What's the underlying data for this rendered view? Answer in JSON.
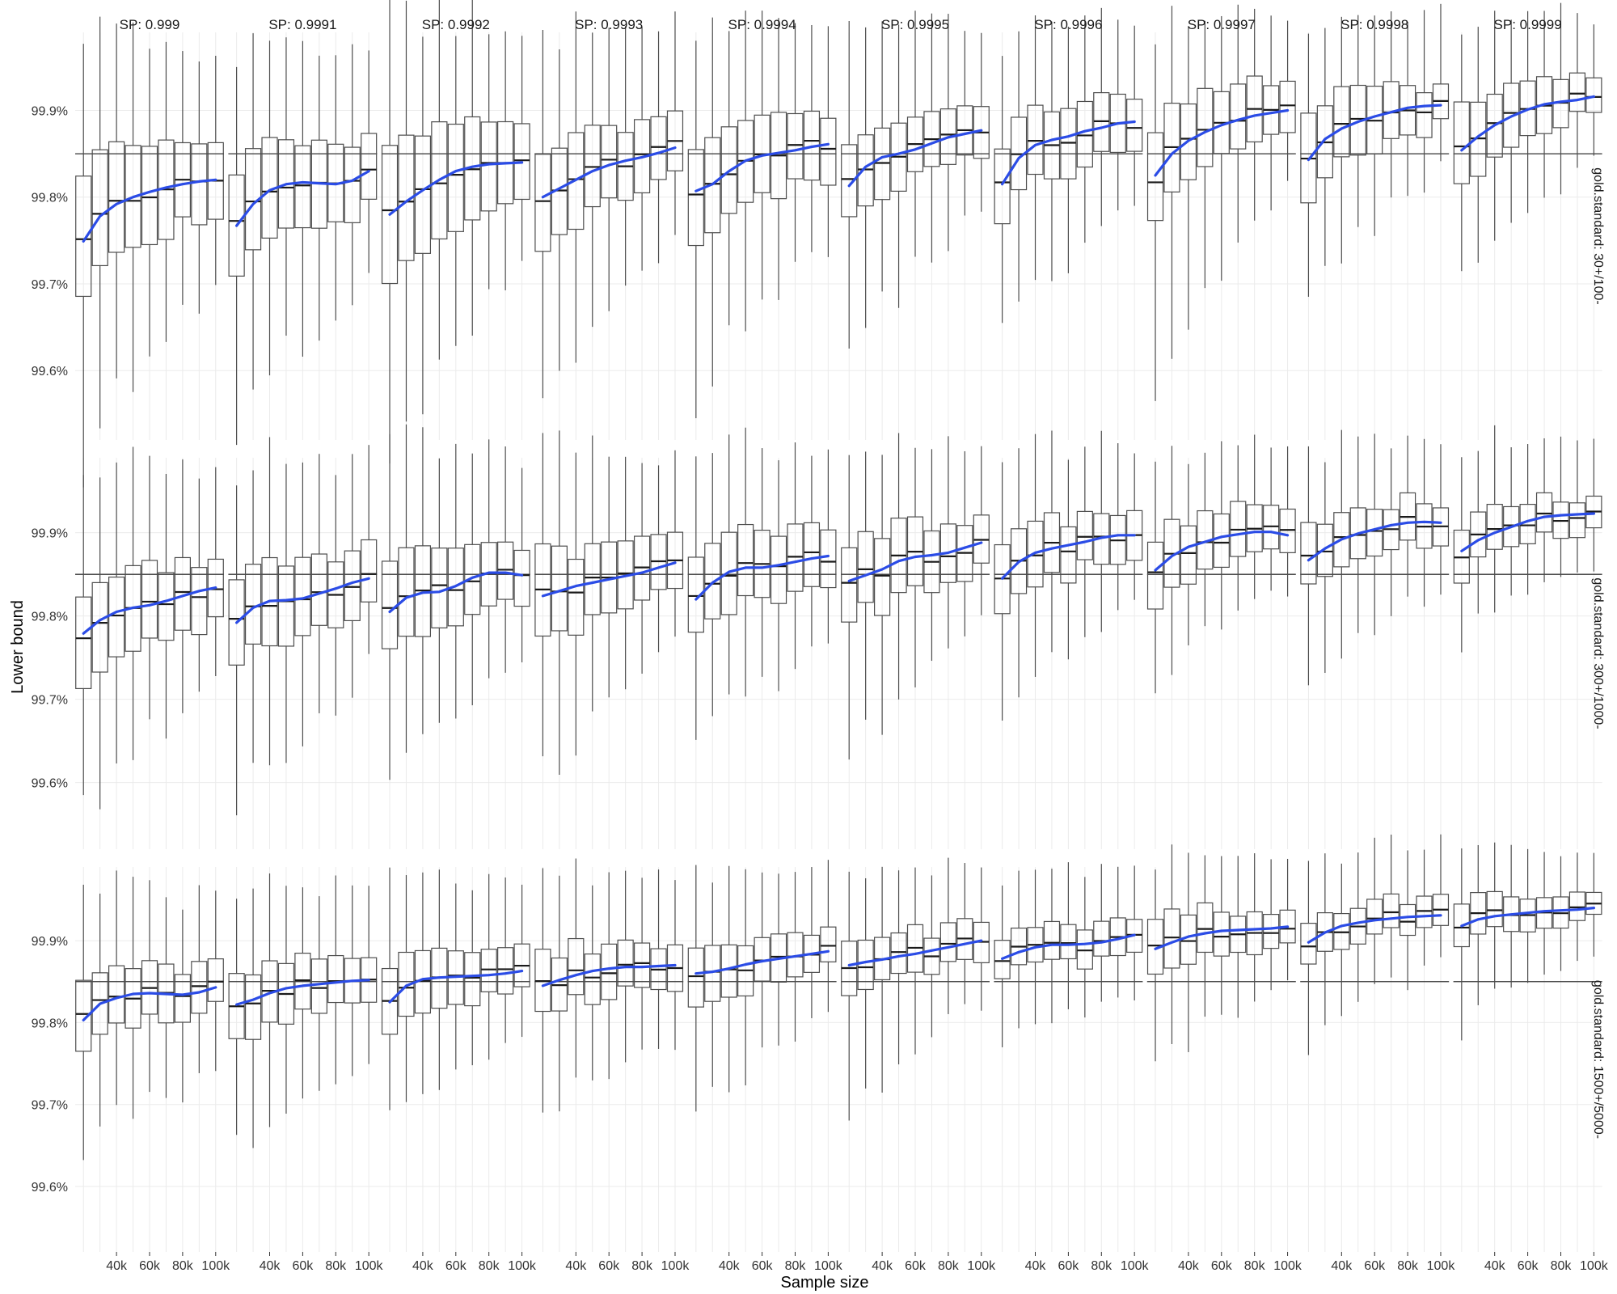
{
  "colors": {
    "box_stroke": "#4d4d4d",
    "median": "#1a1a1a",
    "whisker": "#4d4d4d",
    "trend": "#2b4ce6",
    "reference": "#333333",
    "grid": "#ebebeb",
    "background": "#ffffff"
  },
  "chart_data": {
    "type": "boxplot-facet",
    "xlabel": "Sample size",
    "ylabel": "Lower bound",
    "x_tick_labels": [
      "40k",
      "60k",
      "80k",
      "100k"
    ],
    "x_tick_values": [
      40000,
      60000,
      80000,
      100000
    ],
    "x_values": [
      20000,
      30000,
      40000,
      50000,
      60000,
      70000,
      80000,
      90000,
      100000
    ],
    "x_range": [
      15000,
      105000
    ],
    "y_tick_labels": [
      "99.6%",
      "99.7%",
      "99.8%",
      "99.9%"
    ],
    "y_tick_values": [
      99.6,
      99.7,
      99.8,
      99.9
    ],
    "ylim": [
      99.52,
      99.99
    ],
    "grid": true,
    "facet_columns": [
      "SP: 0.999",
      "SP: 0.9991",
      "SP: 0.9992",
      "SP: 0.9993",
      "SP: 0.9994",
      "SP: 0.9995",
      "SP: 0.9996",
      "SP: 0.9997",
      "SP: 0.9998",
      "SP: 0.9999"
    ],
    "facet_rows": [
      {
        "label": "gold.standard: 30+/100-",
        "reference_line": 99.85,
        "panels": [
          {
            "start_med": 99.749,
            "end_med": 99.818,
            "start_iqr": 0.14,
            "end_iqr": 0.08,
            "start_wlo": 0.21,
            "end_wlo": 0.09,
            "start_whi": 0.16,
            "end_whi": 0.11
          },
          {
            "start_med": 99.78,
            "end_med": 99.83,
            "start_iqr": 0.12,
            "end_iqr": 0.08,
            "start_wlo": 0.21,
            "end_wlo": 0.09,
            "start_whi": 0.16,
            "end_whi": 0.11
          },
          {
            "start_med": 99.78,
            "end_med": 99.845,
            "start_iqr": 0.16,
            "end_iqr": 0.08,
            "start_wlo": 0.21,
            "end_wlo": 0.09,
            "start_whi": 0.16,
            "end_whi": 0.11
          },
          {
            "start_med": 99.805,
            "end_med": 99.865,
            "start_iqr": 0.11,
            "end_iqr": 0.075,
            "start_wlo": 0.2,
            "end_wlo": 0.08,
            "start_whi": 0.15,
            "end_whi": 0.11
          },
          {
            "start_med": 99.815,
            "end_med": 99.862,
            "start_iqr": 0.11,
            "end_iqr": 0.075,
            "start_wlo": 0.2,
            "end_wlo": 0.08,
            "start_whi": 0.15,
            "end_whi": 0.11
          },
          {
            "start_med": 99.82,
            "end_med": 99.878,
            "start_iqr": 0.08,
            "end_iqr": 0.06,
            "start_wlo": 0.16,
            "end_wlo": 0.08,
            "start_whi": 0.14,
            "end_whi": 0.1
          },
          {
            "start_med": 99.82,
            "end_med": 99.888,
            "start_iqr": 0.085,
            "end_iqr": 0.06,
            "start_wlo": 0.15,
            "end_wlo": 0.07,
            "start_whi": 0.13,
            "end_whi": 0.1
          },
          {
            "start_med": 99.832,
            "end_med": 99.902,
            "start_iqr": 0.1,
            "end_iqr": 0.06,
            "start_wlo": 0.21,
            "end_wlo": 0.07,
            "start_whi": 0.11,
            "end_whi": 0.09
          },
          {
            "start_med": 99.852,
            "end_med": 99.91,
            "start_iqr": 0.1,
            "end_iqr": 0.045,
            "start_wlo": 0.14,
            "end_wlo": 0.06,
            "start_whi": 0.11,
            "end_whi": 0.09
          },
          {
            "start_med": 99.86,
            "end_med": 99.918,
            "start_iqr": 0.09,
            "end_iqr": 0.04,
            "start_wlo": 0.12,
            "end_wlo": 0.06,
            "start_whi": 0.1,
            "end_whi": 0.08
          }
        ],
        "trends": [
          [
            99.749,
            99.778,
            99.792,
            99.8,
            99.806,
            99.811,
            99.815,
            99.818,
            99.82
          ],
          [
            99.767,
            99.792,
            99.808,
            99.815,
            99.817,
            99.816,
            99.815,
            99.819,
            99.83
          ],
          [
            99.78,
            99.795,
            99.808,
            99.82,
            99.83,
            99.835,
            99.838,
            99.839,
            99.84
          ],
          [
            99.8,
            99.81,
            99.82,
            99.83,
            99.837,
            99.842,
            99.846,
            99.851,
            99.857
          ],
          [
            99.807,
            99.815,
            99.83,
            99.842,
            99.848,
            99.851,
            99.854,
            99.858,
            99.861
          ],
          [
            99.813,
            99.835,
            99.846,
            99.85,
            99.855,
            99.862,
            99.869,
            99.873,
            99.877
          ],
          [
            99.815,
            99.845,
            99.86,
            99.866,
            99.87,
            99.876,
            99.88,
            99.885,
            99.887
          ],
          [
            99.825,
            99.85,
            99.865,
            99.875,
            99.883,
            99.889,
            99.894,
            99.897,
            99.9
          ],
          [
            99.843,
            99.867,
            99.879,
            99.887,
            99.893,
            99.898,
            99.903,
            99.905,
            99.906
          ],
          [
            99.854,
            99.87,
            99.883,
            99.893,
            99.901,
            99.907,
            99.91,
            99.912,
            99.916
          ]
        ]
      },
      {
        "label": "gold.standard: 300+/1000-",
        "reference_line": 99.85,
        "panels": [
          {
            "start_med": 99.779,
            "end_med": 99.835,
            "start_iqr": 0.11,
            "end_iqr": 0.075,
            "start_wlo": 0.17,
            "end_wlo": 0.08,
            "start_whi": 0.15,
            "end_whi": 0.12
          },
          {
            "start_med": 99.798,
            "end_med": 99.845,
            "start_iqr": 0.11,
            "end_iqr": 0.075,
            "start_wlo": 0.18,
            "end_wlo": 0.08,
            "start_whi": 0.15,
            "end_whi": 0.12
          },
          {
            "start_med": 99.805,
            "end_med": 99.85,
            "start_iqr": 0.11,
            "end_iqr": 0.07,
            "start_wlo": 0.18,
            "end_wlo": 0.08,
            "start_whi": 0.15,
            "end_whi": 0.11
          },
          {
            "start_med": 99.828,
            "end_med": 99.868,
            "start_iqr": 0.1,
            "end_iqr": 0.06,
            "start_wlo": 0.18,
            "end_wlo": 0.07,
            "start_whi": 0.14,
            "end_whi": 0.1
          },
          {
            "start_med": 99.82,
            "end_med": 99.872,
            "start_iqr": 0.1,
            "end_iqr": 0.07,
            "start_wlo": 0.14,
            "end_wlo": 0.08,
            "start_whi": 0.13,
            "end_whi": 0.1
          },
          {
            "start_med": 99.845,
            "end_med": 99.885,
            "start_iqr": 0.09,
            "end_iqr": 0.065,
            "start_wlo": 0.17,
            "end_wlo": 0.07,
            "start_whi": 0.12,
            "end_whi": 0.1
          },
          {
            "start_med": 99.85,
            "end_med": 99.9,
            "start_iqr": 0.08,
            "end_iqr": 0.055,
            "start_wlo": 0.16,
            "end_wlo": 0.06,
            "start_whi": 0.12,
            "end_whi": 0.09
          },
          {
            "start_med": 99.86,
            "end_med": 99.904,
            "start_iqr": 0.08,
            "end_iqr": 0.055,
            "start_wlo": 0.11,
            "end_wlo": 0.06,
            "start_whi": 0.1,
            "end_whi": 0.08
          },
          {
            "start_med": 99.872,
            "end_med": 99.912,
            "start_iqr": 0.07,
            "end_iqr": 0.045,
            "start_wlo": 0.14,
            "end_wlo": 0.06,
            "start_whi": 0.1,
            "end_whi": 0.08
          },
          {
            "start_med": 99.88,
            "end_med": 99.925,
            "start_iqr": 0.06,
            "end_iqr": 0.04,
            "start_wlo": 0.09,
            "end_wlo": 0.05,
            "start_whi": 0.1,
            "end_whi": 0.07
          }
        ],
        "trends": [
          [
            99.779,
            99.795,
            99.805,
            99.81,
            99.813,
            99.818,
            99.824,
            99.83,
            99.834
          ],
          [
            99.792,
            99.81,
            99.818,
            99.819,
            99.821,
            99.827,
            99.833,
            99.84,
            99.845
          ],
          [
            99.805,
            99.822,
            99.828,
            99.829,
            99.836,
            99.846,
            99.852,
            99.852,
            99.849
          ],
          [
            99.824,
            99.83,
            99.836,
            99.84,
            99.844,
            99.848,
            99.852,
            99.858,
            99.864
          ],
          [
            99.82,
            99.84,
            99.853,
            99.858,
            99.858,
            99.861,
            99.865,
            99.869,
            99.872
          ],
          [
            99.842,
            99.849,
            99.856,
            99.866,
            99.871,
            99.873,
            99.876,
            99.882,
            99.888
          ],
          [
            99.845,
            99.865,
            99.876,
            99.881,
            99.885,
            99.889,
            99.894,
            99.897,
            99.897
          ],
          [
            99.855,
            99.872,
            99.883,
            99.889,
            99.895,
            99.898,
            99.901,
            99.901,
            99.897
          ],
          [
            99.867,
            99.881,
            99.892,
            99.899,
            99.904,
            99.909,
            99.912,
            99.913,
            99.912
          ],
          [
            99.878,
            99.891,
            99.9,
            99.907,
            99.914,
            99.919,
            99.921,
            99.922,
            99.923
          ]
        ]
      },
      {
        "label": "gold.standard: 1500+/5000-",
        "reference_line": 99.85,
        "panels": [
          {
            "start_med": 99.797,
            "end_med": 99.85,
            "start_iqr": 0.08,
            "end_iqr": 0.055,
            "start_wlo": 0.13,
            "end_wlo": 0.09,
            "start_whi": 0.12,
            "end_whi": 0.09
          },
          {
            "start_med": 99.823,
            "end_med": 99.852,
            "start_iqr": 0.08,
            "end_iqr": 0.055,
            "start_wlo": 0.15,
            "end_wlo": 0.08,
            "start_whi": 0.12,
            "end_whi": 0.09
          },
          {
            "start_med": 99.82,
            "end_med": 99.865,
            "start_iqr": 0.08,
            "end_iqr": 0.05,
            "start_wlo": 0.12,
            "end_wlo": 0.07,
            "start_whi": 0.12,
            "end_whi": 0.09
          },
          {
            "start_med": 99.845,
            "end_med": 99.87,
            "start_iqr": 0.075,
            "end_iqr": 0.05,
            "start_wlo": 0.13,
            "end_wlo": 0.07,
            "start_whi": 0.12,
            "end_whi": 0.09
          },
          {
            "start_med": 99.865,
            "end_med": 99.885,
            "start_iqr": 0.07,
            "end_iqr": 0.045,
            "start_wlo": 0.14,
            "end_wlo": 0.06,
            "start_whi": 0.1,
            "end_whi": 0.08
          },
          {
            "start_med": 99.872,
            "end_med": 99.9,
            "start_iqr": 0.06,
            "end_iqr": 0.045,
            "start_wlo": 0.16,
            "end_wlo": 0.06,
            "start_whi": 0.1,
            "end_whi": 0.08
          },
          {
            "start_med": 99.883,
            "end_med": 99.912,
            "start_iqr": 0.05,
            "end_iqr": 0.04,
            "start_wlo": 0.09,
            "end_wlo": 0.06,
            "start_whi": 0.08,
            "end_whi": 0.07
          },
          {
            "start_med": 99.895,
            "end_med": 99.918,
            "start_iqr": 0.07,
            "end_iqr": 0.04,
            "start_wlo": 0.12,
            "end_wlo": 0.06,
            "start_whi": 0.08,
            "end_whi": 0.07
          },
          {
            "start_med": 99.898,
            "end_med": 99.93,
            "start_iqr": 0.05,
            "end_iqr": 0.035,
            "start_wlo": 0.11,
            "end_wlo": 0.05,
            "start_whi": 0.08,
            "end_whi": 0.07
          },
          {
            "start_med": 99.922,
            "end_med": 99.94,
            "start_iqr": 0.05,
            "end_iqr": 0.03,
            "start_wlo": 0.11,
            "end_wlo": 0.05,
            "start_whi": 0.07,
            "end_whi": 0.06
          }
        ],
        "trends": [
          [
            99.803,
            99.823,
            99.83,
            99.835,
            99.836,
            99.835,
            99.834,
            99.837,
            99.843
          ],
          [
            99.822,
            99.828,
            99.836,
            99.842,
            99.845,
            99.847,
            99.849,
            99.851,
            99.852
          ],
          [
            99.825,
            99.845,
            99.853,
            99.855,
            99.856,
            99.857,
            99.858,
            99.86,
            99.863
          ],
          [
            99.845,
            99.852,
            99.858,
            99.863,
            99.866,
            99.868,
            99.868,
            99.869,
            99.87
          ],
          [
            99.86,
            99.862,
            99.866,
            99.871,
            99.875,
            99.878,
            99.881,
            99.884,
            99.887
          ],
          [
            99.87,
            99.874,
            99.877,
            99.881,
            99.884,
            99.888,
            99.892,
            99.896,
            99.9
          ],
          [
            99.878,
            99.886,
            99.892,
            99.895,
            99.895,
            99.896,
            99.898,
            99.902,
            99.907
          ],
          [
            99.89,
            99.898,
            99.905,
            99.909,
            99.912,
            99.913,
            99.914,
            99.915,
            99.917
          ],
          [
            99.898,
            99.91,
            99.918,
            99.922,
            99.925,
            99.927,
            99.929,
            99.93,
            99.931
          ],
          [
            99.918,
            99.926,
            99.93,
            99.932,
            99.934,
            99.936,
            99.937,
            99.938,
            99.94
          ]
        ]
      }
    ]
  }
}
